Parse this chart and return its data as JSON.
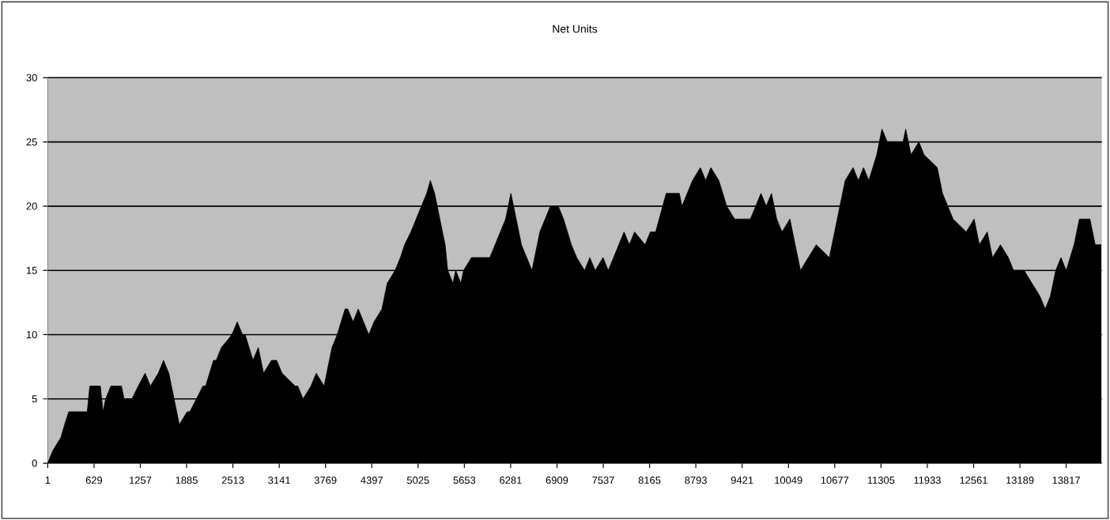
{
  "chart_data": {
    "type": "area",
    "title": "Net Units",
    "color": "#000000",
    "x": [
      1,
      72,
      180,
      230,
      287,
      537,
      572,
      715,
      751,
      787,
      858,
      1001,
      1037,
      1144,
      1229,
      1322,
      1394,
      1501,
      1572,
      1644,
      1715,
      1786,
      1893,
      1929,
      2107,
      2143,
      2250,
      2286,
      2357,
      2500,
      2572,
      2643,
      2679,
      2786,
      2857,
      2893,
      2929,
      3036,
      3107,
      3179,
      3357,
      3393,
      3465,
      3572,
      3643,
      3750,
      3786,
      3857,
      3928,
      4035,
      4071,
      4143,
      4214,
      4285,
      4356,
      4428,
      4535,
      4606,
      4713,
      4785,
      4842,
      4928,
      4999,
      5070,
      5142,
      5192,
      5249,
      5320,
      5392,
      5427,
      5499,
      5535,
      5606,
      5642,
      5749,
      5999,
      6070,
      6141,
      6213,
      6284,
      6356,
      6427,
      6570,
      6606,
      6677,
      6820,
      6927,
      6998,
      7105,
      7177,
      7284,
      7355,
      7427,
      7534,
      7605,
      7677,
      7748,
      7819,
      7891,
      7962,
      8105,
      8176,
      8248,
      8391,
      8569,
      8605,
      8676,
      8748,
      8855,
      8926,
      8997,
      9105,
      9212,
      9319,
      9533,
      9605,
      9676,
      9748,
      9819,
      9890,
      9962,
      10069,
      10140,
      10212,
      10319,
      10426,
      10604,
      10676,
      10747,
      10819,
      10926,
      10997,
      11068,
      11140,
      11247,
      11318,
      11390,
      11604,
      11640,
      11711,
      11818,
      11889,
      12068,
      12139,
      12282,
      12461,
      12568,
      12639,
      12746,
      12818,
      12925,
      13032,
      13103,
      13246,
      13353,
      13460,
      13532,
      13603,
      13675,
      13746,
      13817,
      13924,
      13996,
      14139,
      14210,
      14290
    ],
    "values": [
      0,
      1,
      2,
      3,
      4,
      4,
      6,
      6,
      4,
      5,
      6,
      6,
      5,
      5,
      6,
      7,
      6,
      7,
      8,
      7,
      5,
      3,
      4,
      4,
      6,
      6,
      8,
      8,
      9,
      10,
      11,
      10,
      10,
      8,
      9,
      8,
      7,
      8,
      8,
      7,
      6,
      6,
      5,
      6,
      7,
      6,
      7,
      9,
      10,
      12,
      12,
      11,
      12,
      11,
      10,
      11,
      12,
      14,
      15,
      16,
      17,
      18,
      19,
      20,
      21,
      22,
      21,
      19,
      17,
      15,
      14,
      15,
      14,
      15,
      16,
      16,
      17,
      18,
      19,
      21,
      19,
      17,
      15,
      16,
      18,
      20,
      20,
      19,
      17,
      16,
      15,
      16,
      15,
      16,
      15,
      16,
      17,
      18,
      17,
      18,
      17,
      18,
      18,
      21,
      21,
      20,
      21,
      22,
      23,
      22,
      23,
      22,
      20,
      19,
      19,
      20,
      21,
      20,
      21,
      19,
      18,
      19,
      17,
      15,
      16,
      17,
      16,
      18,
      20,
      22,
      23,
      22,
      23,
      22,
      24,
      26,
      25,
      25,
      26,
      24,
      25,
      24,
      23,
      21,
      19,
      18,
      19,
      17,
      18,
      16,
      17,
      16,
      15,
      15,
      14,
      13,
      12,
      13,
      15,
      16,
      15,
      17,
      19,
      19,
      17,
      17
    ],
    "xlim": [
      1,
      14300
    ],
    "ylim": [
      0,
      30
    ],
    "xticks": [
      1,
      629,
      1257,
      1885,
      2513,
      3141,
      3769,
      4397,
      5025,
      5653,
      6281,
      6909,
      7537,
      8165,
      8793,
      9421,
      10049,
      10677,
      11305,
      11933,
      12561,
      13189,
      13817
    ],
    "yticks": [
      0,
      5,
      10,
      15,
      20,
      25,
      30
    ],
    "grid": "y"
  }
}
